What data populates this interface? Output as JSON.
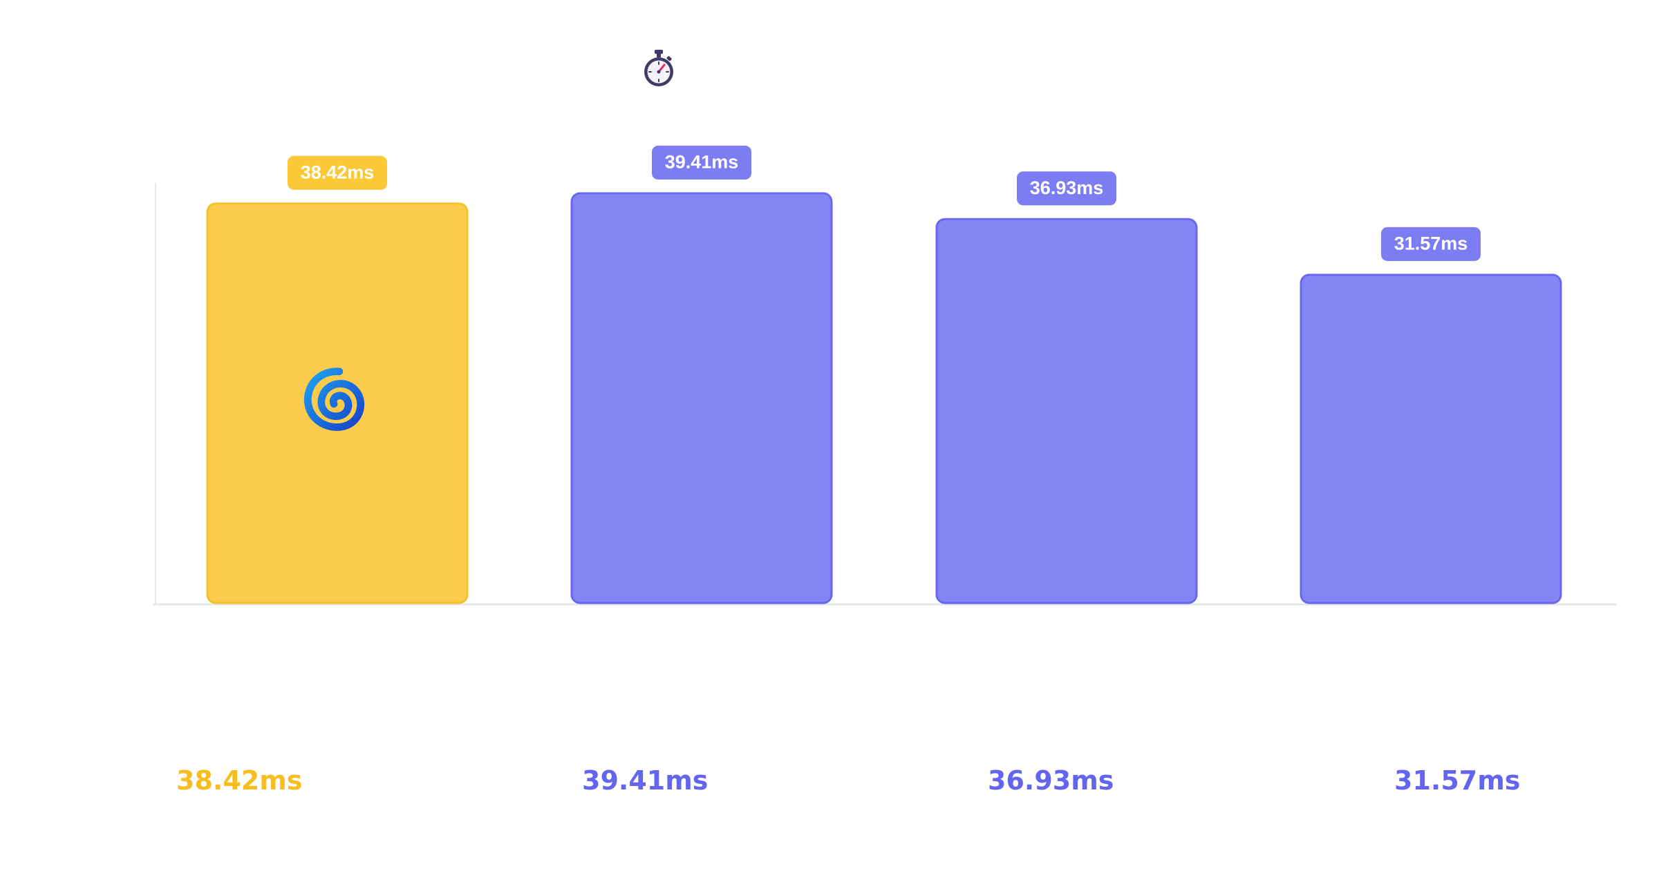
{
  "chart_data": {
    "type": "bar",
    "categories": [
      "",
      "",
      "",
      ""
    ],
    "values": [
      38.42,
      39.41,
      36.93,
      31.57
    ],
    "data_labels": [
      "38.42ms",
      "39.41ms",
      "36.93ms",
      "31.57ms"
    ],
    "footer_labels": [
      "38.42ms",
      "39.41ms",
      "36.93ms",
      "31.57ms"
    ],
    "unit": "ms",
    "title": "",
    "xlabel": "",
    "ylabel": "",
    "ylim": [
      0,
      40
    ],
    "grid": false,
    "legend": "none",
    "highlight_index": 0,
    "colors": {
      "highlight": "#fbcb4e",
      "highlight_border": "#f5c129",
      "highlight_label_bg": "#fbc937",
      "highlight_text": "#f7bd21",
      "default": "#8286f4",
      "default_border": "#6b66ef",
      "default_label_bg": "#7c7df2",
      "default_text": "#6365ee",
      "axis": "#e5e7eb",
      "label_text": "#ffffff"
    },
    "icons": {
      "header": "stopwatch-icon",
      "highlight_bar": "swirl-icon"
    }
  }
}
